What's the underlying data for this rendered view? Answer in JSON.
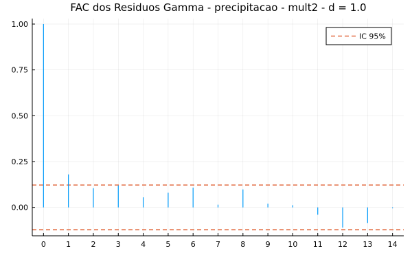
{
  "chart_data": {
    "type": "bar",
    "title": "FAC dos Residuos  Gamma - precipitacao - mult2 - d = 1.0",
    "xlabel": "",
    "ylabel": "",
    "x": [
      0,
      1,
      2,
      3,
      4,
      5,
      6,
      7,
      8,
      9,
      10,
      11,
      12,
      13,
      14
    ],
    "series": [
      {
        "values": [
          1.0,
          0.18,
          0.105,
          0.12,
          0.055,
          0.08,
          0.108,
          0.015,
          0.098,
          0.02,
          0.012,
          -0.04,
          -0.11,
          -0.085,
          -0.005
        ],
        "color": "#009af9"
      }
    ],
    "confidence_interval": {
      "name": "IC 95%",
      "upper": 0.122,
      "lower": -0.122,
      "color": "#e26f46",
      "style": "dashed"
    },
    "xticks": [
      0,
      1,
      2,
      3,
      4,
      5,
      6,
      7,
      8,
      9,
      10,
      11,
      12,
      13,
      14
    ],
    "yticks": [
      0.0,
      0.25,
      0.5,
      0.75,
      1.0
    ],
    "ytick_labels": [
      "0.00",
      "0.25",
      "0.50",
      "0.75",
      "1.00"
    ],
    "xlim": [
      -0.45,
      14.45
    ],
    "ylim": [
      -0.155,
      1.03
    ],
    "grid": true,
    "legend_position": "top-right"
  }
}
